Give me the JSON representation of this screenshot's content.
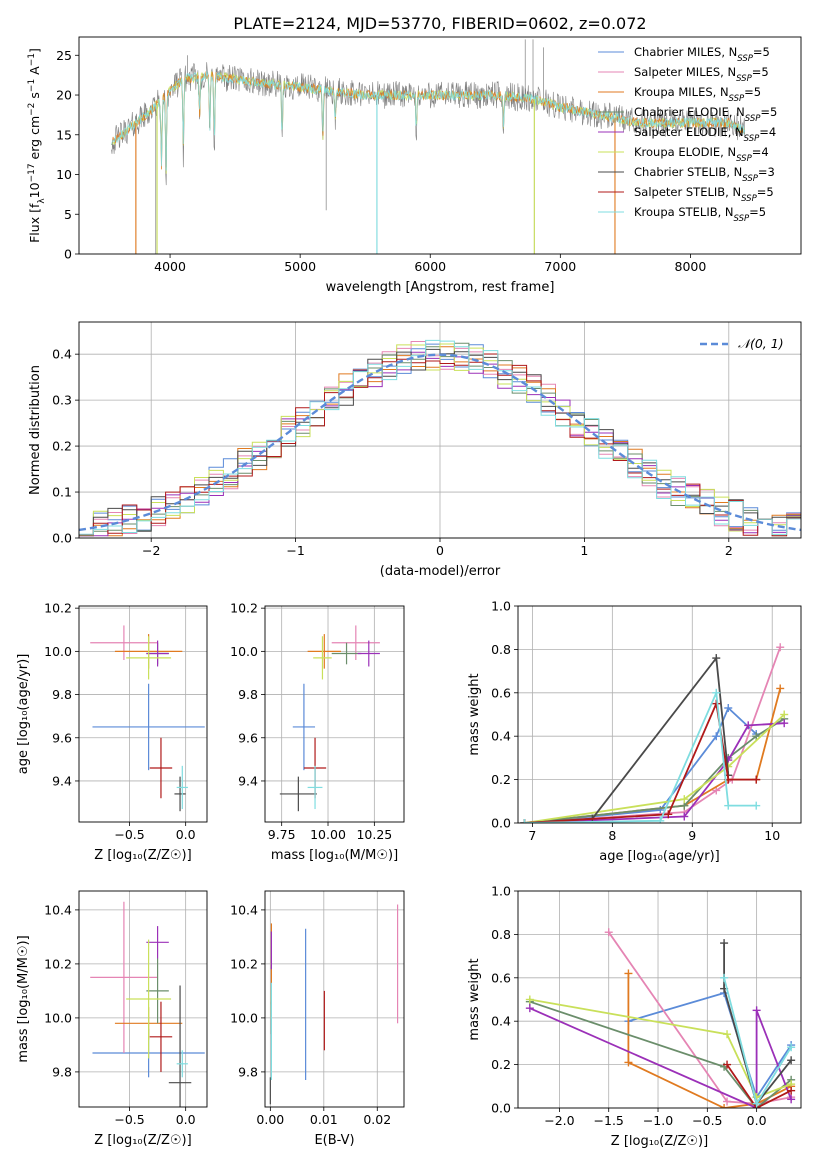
{
  "figure": {
    "title": "PLATE=2124, MJD=53770, FIBERID=0602, z=0.072"
  },
  "colors": {
    "Chabrier MILES": "#5b8bd8",
    "Salpeter MILES": "#e585b4",
    "Kroupa MILES": "#e07a20",
    "Chabrier ELODIE": "#6b8e6b",
    "Salpeter ELODIE": "#9b30b8",
    "Kroupa ELODIE": "#c9e05a",
    "Chabrier STELIB": "#4a4a4a",
    "Salpeter STELIB": "#b01a1a",
    "Kroupa STELIB": "#7fdde0"
  },
  "chart_data": [
    {
      "id": "spectrum",
      "type": "line",
      "xlabel": "wavelength [Angstrom, rest frame]",
      "ylabel_parts": [
        "Flux [f",
        "λ",
        "10",
        "−17",
        " erg cm",
        "−2",
        " s",
        "−1",
        " A",
        "−1",
        "]"
      ],
      "xlim": [
        3300,
        8850
      ],
      "ylim": [
        0,
        27.3
      ],
      "xticks": [
        4000,
        5000,
        6000,
        7000,
        8000
      ],
      "yticks": [
        0,
        5,
        10,
        15,
        20,
        25
      ],
      "legend_position": "top-right",
      "legend": [
        {
          "prefix": "Chabrier MILES, N",
          "sub": "SSP",
          "suffix": "=5"
        },
        {
          "prefix": "Salpeter MILES, N",
          "sub": "SSP",
          "suffix": "=5"
        },
        {
          "prefix": "Kroupa MILES, N",
          "sub": "SSP",
          "suffix": "=5"
        },
        {
          "prefix": "Chabrier ELODIE, N",
          "sub": "SSP",
          "suffix": "=5"
        },
        {
          "prefix": "Salpeter ELODIE, N",
          "sub": "SSP",
          "suffix": "=4"
        },
        {
          "prefix": "Kroupa ELODIE, N",
          "sub": "SSP",
          "suffix": "=4"
        },
        {
          "prefix": "Chabrier STELIB, N",
          "sub": "SSP",
          "suffix": "=3"
        },
        {
          "prefix": "Salpeter STELIB, N",
          "sub": "SSP",
          "suffix": "=5"
        },
        {
          "prefix": "Kroupa STELIB, N",
          "sub": "SSP",
          "suffix": "=5"
        }
      ],
      "continuum": [
        [
          3550,
          14
        ],
        [
          3700,
          16
        ],
        [
          3850,
          18
        ],
        [
          4000,
          20.5
        ],
        [
          4100,
          22
        ],
        [
          4300,
          22.5
        ],
        [
          4500,
          22
        ],
        [
          4700,
          21.5
        ],
        [
          5000,
          21
        ],
        [
          5500,
          20
        ],
        [
          6000,
          20
        ],
        [
          6500,
          20
        ],
        [
          6800,
          19.5
        ],
        [
          7000,
          18.5
        ],
        [
          7300,
          17.5
        ],
        [
          7600,
          16.5
        ],
        [
          8000,
          16.5
        ],
        [
          8300,
          16.5
        ],
        [
          8420,
          15.5
        ]
      ],
      "absorption_lines": [
        [
          3934,
          10
        ],
        [
          3969,
          9
        ],
        [
          4102,
          12.5
        ],
        [
          4227,
          17
        ],
        [
          4305,
          15
        ],
        [
          4340,
          13.5
        ],
        [
          4861,
          14
        ],
        [
          5175,
          14
        ],
        [
          5270,
          16
        ],
        [
          5893,
          15
        ],
        [
          6563,
          15
        ]
      ],
      "spikes": [
        [
          3737,
          0
        ],
        [
          3890,
          0
        ],
        [
          3900,
          3
        ],
        [
          5200,
          5.5
        ],
        [
          5590,
          0
        ],
        [
          6800,
          0
        ],
        [
          7420,
          0
        ],
        [
          4135,
          25
        ],
        [
          6730,
          27
        ],
        [
          6790,
          27
        ],
        [
          6870,
          26
        ]
      ],
      "noise_amplitude": 2.2
    },
    {
      "id": "residual_histogram",
      "type": "area",
      "xlabel": "(data-model)/error",
      "ylabel": "Normed distribution",
      "xlim": [
        -2.5,
        2.5
      ],
      "ylim": [
        0,
        0.47
      ],
      "xticks": [
        -2,
        -1,
        0,
        1,
        2
      ],
      "yticks": [
        0,
        0.1,
        0.2,
        0.3,
        0.4
      ],
      "reference_curve": {
        "name": "𝒩(0, 1)",
        "mean": 0,
        "sigma": 1,
        "color": "#5b8bd8"
      },
      "legend_position": "top-right",
      "bin_width": 0.1,
      "series_scatter": 0.035
    },
    {
      "id": "age_vs_Z",
      "type": "scatter",
      "xlabel": "Z [log₁₀(Z/Z☉)]",
      "ylabel": "age  [log₁₀(age/yr)]",
      "xlim": [
        -0.95,
        0.19
      ],
      "ylim": [
        9.21,
        10.21
      ],
      "xticks": [
        -0.5,
        0.0
      ],
      "yticks": [
        9.4,
        9.6,
        9.8,
        10.0,
        10.2
      ],
      "points": [
        {
          "series": "Chabrier MILES",
          "x": -0.33,
          "xerr": 0.5,
          "y": 9.65,
          "yerr": 0.2
        },
        {
          "series": "Salpeter MILES",
          "x": -0.55,
          "xerr": 0.3,
          "y": 10.04,
          "yerr": 0.08
        },
        {
          "series": "Kroupa MILES",
          "x": -0.33,
          "xerr": 0.3,
          "y": 10.0,
          "yerr": 0.08
        },
        {
          "series": "Chabrier ELODIE",
          "x": -0.25,
          "xerr": 0.1,
          "y": 9.99,
          "yerr": 0.05
        },
        {
          "series": "Salpeter ELODIE",
          "x": -0.25,
          "xerr": 0.1,
          "y": 9.99,
          "yerr": 0.06
        },
        {
          "series": "Kroupa ELODIE",
          "x": -0.33,
          "xerr": 0.2,
          "y": 9.97,
          "yerr": 0.1
        },
        {
          "series": "Chabrier STELIB",
          "x": -0.05,
          "xerr": 0.05,
          "y": 9.34,
          "yerr": 0.08
        },
        {
          "series": "Salpeter STELIB",
          "x": -0.22,
          "xerr": 0.1,
          "y": 9.46,
          "yerr": 0.14
        },
        {
          "series": "Kroupa STELIB",
          "x": -0.03,
          "xerr": 0.05,
          "y": 9.37,
          "yerr": 0.1
        }
      ]
    },
    {
      "id": "age_vs_mass",
      "type": "scatter",
      "xlabel": "mass [log₁₀(M/M☉)]",
      "ylabel": "",
      "xlim": [
        9.66,
        10.41
      ],
      "ylim": [
        9.21,
        10.21
      ],
      "xticks": [
        9.75,
        10.0,
        10.25
      ],
      "xtick_labels": [
        "9.75",
        "10.00",
        "10.25"
      ],
      "yticks": [
        9.4,
        9.6,
        9.8,
        10.0,
        10.2
      ],
      "points": [
        {
          "series": "Chabrier MILES",
          "x": 9.87,
          "xerr": 0.06,
          "y": 9.65,
          "yerr": 0.2
        },
        {
          "series": "Salpeter MILES",
          "x": 10.15,
          "xerr": 0.13,
          "y": 10.04,
          "yerr": 0.08
        },
        {
          "series": "Kroupa MILES",
          "x": 9.98,
          "xerr": 0.09,
          "y": 10.0,
          "yerr": 0.08
        },
        {
          "series": "Chabrier ELODIE",
          "x": 10.1,
          "xerr": 0.08,
          "y": 9.99,
          "yerr": 0.05
        },
        {
          "series": "Salpeter ELODIE",
          "x": 10.22,
          "xerr": 0.06,
          "y": 9.99,
          "yerr": 0.06
        },
        {
          "series": "Kroupa ELODIE",
          "x": 9.97,
          "xerr": 0.05,
          "y": 9.97,
          "yerr": 0.1
        },
        {
          "series": "Chabrier STELIB",
          "x": 9.84,
          "xerr": 0.1,
          "y": 9.34,
          "yerr": 0.08
        },
        {
          "series": "Salpeter STELIB",
          "x": 9.93,
          "xerr": 0.06,
          "y": 9.46,
          "yerr": 0.14
        },
        {
          "series": "Kroupa STELIB",
          "x": 9.93,
          "xerr": 0.04,
          "y": 9.37,
          "yerr": 0.1
        }
      ]
    },
    {
      "id": "mass_weight_vs_age",
      "type": "line",
      "xlabel": "age  [log₁₀(age/yr)]",
      "ylabel": "mass weight",
      "xlim": [
        6.82,
        10.36
      ],
      "ylim": [
        0,
        1.0
      ],
      "xticks": [
        7,
        8,
        9,
        10
      ],
      "yticks": [
        0.0,
        0.2,
        0.4,
        0.6,
        0.8,
        1.0
      ],
      "series": [
        {
          "name": "Chabrier MILES",
          "x": [
            6.9,
            8.6,
            9.3,
            9.45,
            9.8
          ],
          "y": [
            0.0,
            0.06,
            0.4,
            0.53,
            0.41
          ]
        },
        {
          "name": "Salpeter MILES",
          "x": [
            6.9,
            8.9,
            9.3,
            9.5,
            10.1
          ],
          "y": [
            0.0,
            0.05,
            0.15,
            0.2,
            0.81
          ]
        },
        {
          "name": "Kroupa MILES",
          "x": [
            6.9,
            8.9,
            9.45,
            9.8,
            10.1
          ],
          "y": [
            0.0,
            0.08,
            0.2,
            0.2,
            0.62
          ]
        },
        {
          "name": "Chabrier ELODIE",
          "x": [
            6.9,
            8.9,
            9.45,
            9.8,
            10.15
          ],
          "y": [
            0.0,
            0.08,
            0.3,
            0.4,
            0.48
          ]
        },
        {
          "name": "Salpeter ELODIE",
          "x": [
            6.9,
            8.9,
            9.45,
            9.7,
            10.15
          ],
          "y": [
            0.0,
            0.03,
            0.29,
            0.45,
            0.46
          ]
        },
        {
          "name": "Kroupa ELODIE",
          "x": [
            6.9,
            8.9,
            9.45,
            10.15
          ],
          "y": [
            0.0,
            0.11,
            0.26,
            0.5
          ]
        },
        {
          "name": "Chabrier STELIB",
          "x": [
            6.9,
            7.75,
            9.3,
            9.45
          ],
          "y": [
            0.0,
            0.02,
            0.76,
            0.22
          ]
        },
        {
          "name": "Salpeter STELIB",
          "x": [
            6.9,
            8.7,
            9.3,
            9.45,
            9.8
          ],
          "y": [
            0.0,
            0.04,
            0.55,
            0.2,
            0.2
          ]
        },
        {
          "name": "Kroupa STELIB",
          "x": [
            6.9,
            8.6,
            9.3,
            9.45,
            9.8
          ],
          "y": [
            0.0,
            0.01,
            0.6,
            0.08,
            0.08
          ]
        }
      ]
    },
    {
      "id": "mass_vs_Z",
      "type": "scatter",
      "xlabel": "Z [log₁₀(Z/Z☉)]",
      "ylabel": "mass [log₁₀(M/M☉)]",
      "xlim": [
        -0.95,
        0.19
      ],
      "ylim": [
        9.67,
        10.47
      ],
      "xticks": [
        -0.5,
        0.0
      ],
      "yticks": [
        9.8,
        10.0,
        10.2,
        10.4
      ],
      "points": [
        {
          "series": "Chabrier MILES",
          "x": -0.33,
          "xerr": 0.5,
          "y": 9.87,
          "yerr": 0.09
        },
        {
          "series": "Salpeter MILES",
          "x": -0.55,
          "xerr": 0.3,
          "y": 10.15,
          "yerr": 0.28
        },
        {
          "series": "Kroupa MILES",
          "x": -0.33,
          "xerr": 0.3,
          "y": 9.98,
          "yerr": 0.06
        },
        {
          "series": "Chabrier ELODIE",
          "x": -0.25,
          "xerr": 0.1,
          "y": 10.1,
          "yerr": 0.12
        },
        {
          "series": "Salpeter ELODIE",
          "x": -0.25,
          "xerr": 0.1,
          "y": 10.28,
          "yerr": 0.06
        },
        {
          "series": "Kroupa ELODIE",
          "x": -0.33,
          "xerr": 0.2,
          "y": 10.07,
          "yerr": 0.22
        },
        {
          "series": "Chabrier STELIB",
          "x": -0.05,
          "xerr": 0.1,
          "y": 9.76,
          "yerr": 0.36
        },
        {
          "series": "Salpeter STELIB",
          "x": -0.22,
          "xerr": 0.1,
          "y": 9.93,
          "yerr": 0.13
        },
        {
          "series": "Kroupa STELIB",
          "x": -0.03,
          "xerr": 0.05,
          "y": 9.83,
          "yerr": 0.05
        }
      ]
    },
    {
      "id": "mass_vs_ebv",
      "type": "scatter",
      "xlabel": "E(B-V)",
      "ylabel": "",
      "xlim": [
        -0.001,
        0.025
      ],
      "ylim": [
        9.67,
        10.47
      ],
      "xticks": [
        0.0,
        0.01,
        0.02
      ],
      "xtick_labels": [
        "0.00",
        "0.01",
        "0.02"
      ],
      "yticks": [
        9.8,
        10.0,
        10.2,
        10.4
      ],
      "points": [
        {
          "series": "Chabrier MILES",
          "x": 0.0066,
          "y": 10.05,
          "yerr": 0.28
        },
        {
          "series": "Salpeter MILES",
          "x": 0.0238,
          "y": 10.2,
          "yerr": 0.22
        },
        {
          "series": "Kroupa MILES",
          "x": 0.0002,
          "y": 10.2,
          "yerr": 0.15
        },
        {
          "series": "Chabrier ELODIE",
          "x": 0.0002,
          "y": 10.0,
          "yerr": 0.06
        },
        {
          "series": "Salpeter ELODIE",
          "x": 0.0002,
          "y": 10.25,
          "yerr": 0.07
        },
        {
          "series": "Kroupa ELODIE",
          "x": 0.0002,
          "y": 10.05,
          "yerr": 0.05
        },
        {
          "series": "Chabrier STELIB",
          "x": 0.0,
          "y": 9.73,
          "yerr": 0.05
        },
        {
          "series": "Salpeter STELIB",
          "x": 0.0101,
          "y": 9.99,
          "yerr": 0.11
        },
        {
          "series": "Kroupa STELIB",
          "x": 0.0002,
          "y": 9.95,
          "yerr": 0.18
        }
      ]
    },
    {
      "id": "mass_weight_vs_Z",
      "type": "line",
      "xlabel": "Z [log₁₀(Z/Z☉)]",
      "ylabel": "mass weight",
      "xlim": [
        -2.42,
        0.45
      ],
      "ylim": [
        0,
        1.0
      ],
      "xticks": [
        -2.0,
        -1.5,
        -1.0,
        -0.5,
        0.0
      ],
      "yticks": [
        0.0,
        0.2,
        0.4,
        0.6,
        0.8,
        1.0
      ],
      "series": [
        {
          "name": "Chabrier MILES",
          "x": [
            -1.3,
            -0.33,
            0.0,
            0.35
          ],
          "y": [
            0.4,
            0.53,
            0.05,
            0.29
          ]
        },
        {
          "name": "Salpeter MILES",
          "x": [
            -1.5,
            -0.3,
            0.0,
            0.35
          ],
          "y": [
            0.81,
            0.03,
            0.02,
            0.05
          ]
        },
        {
          "name": "Kroupa MILES",
          "x": [
            -1.3,
            -1.3,
            -0.33,
            0.0,
            0.35
          ],
          "y": [
            0.62,
            0.21,
            0.0,
            0.02,
            0.1
          ]
        },
        {
          "name": "Chabrier ELODIE",
          "x": [
            -2.3,
            -0.33,
            0.0,
            0.35
          ],
          "y": [
            0.49,
            0.19,
            0.0,
            0.13
          ]
        },
        {
          "name": "Salpeter ELODIE",
          "x": [
            -2.3,
            0.0,
            0.0,
            0.35
          ],
          "y": [
            0.46,
            0.0,
            0.45,
            0.04
          ]
        },
        {
          "name": "Kroupa ELODIE",
          "x": [
            -2.3,
            -0.3,
            0.0,
            0.35
          ],
          "y": [
            0.5,
            0.34,
            0.05,
            0.11
          ]
        },
        {
          "name": "Chabrier STELIB",
          "x": [
            -0.33,
            -0.33,
            0.0,
            0.35
          ],
          "y": [
            0.76,
            0.55,
            0.02,
            0.22
          ]
        },
        {
          "name": "Salpeter STELIB",
          "x": [
            -0.3,
            0.0,
            0.35
          ],
          "y": [
            0.2,
            0.0,
            0.08
          ]
        },
        {
          "name": "Kroupa STELIB",
          "x": [
            -0.33,
            0.0,
            0.35
          ],
          "y": [
            0.6,
            0.02,
            0.28
          ]
        }
      ]
    }
  ]
}
